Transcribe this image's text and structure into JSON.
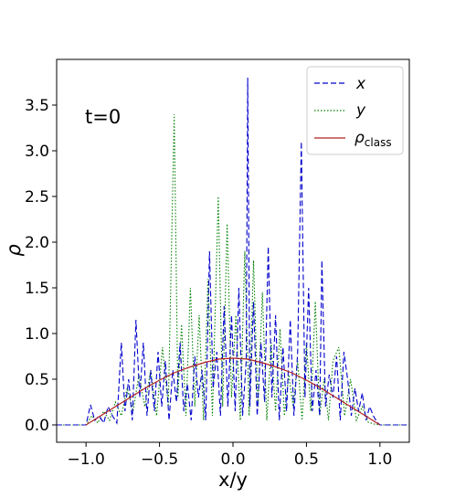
{
  "chart_data": {
    "type": "line",
    "xlabel": "x/y",
    "ylabel": "ρ",
    "annotation": "t=0",
    "xlim": [
      -1.2,
      1.2
    ],
    "ylim": [
      -0.19,
      4.0
    ],
    "xticks": [
      -1.0,
      -0.5,
      0.0,
      0.5,
      1.0
    ],
    "xtick_labels": [
      "−1.0",
      "−0.5",
      "0.0",
      "0.5",
      "1.0"
    ],
    "yticks": [
      0.0,
      0.5,
      1.0,
      1.5,
      2.0,
      2.5,
      3.0,
      3.5
    ],
    "ytick_labels": [
      "0.0",
      "0.5",
      "1.0",
      "1.5",
      "2.0",
      "2.5",
      "3.0",
      "3.5"
    ],
    "legend": {
      "position": "top-right",
      "entries": [
        {
          "label": "x",
          "series": 0
        },
        {
          "label": "y",
          "series": 1
        },
        {
          "label": "ρ",
          "sub": "class",
          "series": 2
        }
      ]
    },
    "series": [
      {
        "name": "x",
        "color": "#0000cc",
        "style": "dashed",
        "x": [
          -1.2,
          -1.0,
          -0.97,
          -0.94,
          -0.91,
          -0.88,
          -0.85,
          -0.82,
          -0.79,
          -0.76,
          -0.735,
          -0.71,
          -0.685,
          -0.66,
          -0.635,
          -0.61,
          -0.585,
          -0.56,
          -0.535,
          -0.51,
          -0.485,
          -0.46,
          -0.435,
          -0.41,
          -0.385,
          -0.36,
          -0.335,
          -0.31,
          -0.285,
          -0.26,
          -0.235,
          -0.21,
          -0.185,
          -0.16,
          -0.135,
          -0.11,
          -0.085,
          -0.06,
          -0.035,
          -0.01,
          0.015,
          0.04,
          0.065,
          0.09,
          0.1,
          0.115,
          0.14,
          0.165,
          0.19,
          0.215,
          0.24,
          0.265,
          0.29,
          0.315,
          0.34,
          0.365,
          0.39,
          0.415,
          0.44,
          0.465,
          0.49,
          0.515,
          0.54,
          0.565,
          0.59,
          0.605,
          0.63,
          0.655,
          0.68,
          0.705,
          0.73,
          0.755,
          0.78,
          0.805,
          0.83,
          0.855,
          0.88,
          0.905,
          0.93,
          0.955,
          0.98,
          1.0,
          1.2
        ],
        "y": [
          0.0,
          0.0,
          0.22,
          0.05,
          0.1,
          0.02,
          0.2,
          0.1,
          0.02,
          0.9,
          0.15,
          0.5,
          0.05,
          1.15,
          0.3,
          0.9,
          0.1,
          0.6,
          0.15,
          0.8,
          0.2,
          0.7,
          0.05,
          0.6,
          0.25,
          0.9,
          0.15,
          0.45,
          0.05,
          0.75,
          0.3,
          0.6,
          0.05,
          1.9,
          0.4,
          0.8,
          0.1,
          1.3,
          0.2,
          1.2,
          0.15,
          1.5,
          0.1,
          0.7,
          3.8,
          0.2,
          1.35,
          0.1,
          0.9,
          0.25,
          1.95,
          0.3,
          1.2,
          0.05,
          0.85,
          0.15,
          1.15,
          0.1,
          0.8,
          3.1,
          0.3,
          1.5,
          0.15,
          0.6,
          0.1,
          1.8,
          0.2,
          0.55,
          0.3,
          0.75,
          0.05,
          0.8,
          0.5,
          0.1,
          0.4,
          0.15,
          0.35,
          0.05,
          0.2,
          0.1,
          0.03,
          0.0,
          0.0
        ]
      },
      {
        "name": "y",
        "color": "#008000",
        "style": "dotted",
        "x": [
          -1.2,
          -1.0,
          -0.96,
          -0.92,
          -0.88,
          -0.84,
          -0.8,
          -0.76,
          -0.72,
          -0.68,
          -0.64,
          -0.6,
          -0.56,
          -0.52,
          -0.48,
          -0.44,
          -0.4,
          -0.375,
          -0.35,
          -0.32,
          -0.29,
          -0.26,
          -0.23,
          -0.2,
          -0.17,
          -0.14,
          -0.12,
          -0.1,
          -0.07,
          -0.04,
          -0.01,
          0.02,
          0.05,
          0.08,
          0.11,
          0.14,
          0.17,
          0.2,
          0.23,
          0.26,
          0.29,
          0.32,
          0.35,
          0.38,
          0.41,
          0.44,
          0.47,
          0.5,
          0.53,
          0.56,
          0.59,
          0.62,
          0.65,
          0.68,
          0.72,
          0.76,
          0.8,
          0.84,
          0.88,
          0.92,
          0.96,
          1.0,
          1.2
        ],
        "y": [
          0.0,
          0.0,
          0.1,
          0.02,
          0.15,
          0.05,
          0.25,
          0.1,
          0.4,
          0.15,
          0.55,
          0.2,
          0.6,
          0.1,
          0.85,
          0.2,
          3.4,
          0.3,
          1.1,
          0.1,
          1.5,
          0.2,
          1.2,
          0.05,
          1.6,
          0.1,
          1.3,
          2.5,
          0.2,
          2.2,
          0.3,
          1.2,
          0.05,
          1.9,
          0.1,
          1.8,
          0.2,
          1.45,
          0.05,
          0.9,
          0.15,
          1.05,
          0.1,
          0.55,
          0.2,
          0.7,
          0.05,
          0.9,
          0.15,
          1.35,
          0.1,
          0.5,
          0.05,
          0.7,
          0.85,
          0.1,
          0.5,
          0.05,
          0.2,
          0.03,
          0.01,
          0.0,
          0.0
        ]
      },
      {
        "name": "ρclass",
        "color": "#b22222",
        "style": "solid",
        "x": [
          -1.0,
          -0.9,
          -0.8,
          -0.7,
          -0.6,
          -0.5,
          -0.4,
          -0.3,
          -0.2,
          -0.1,
          0.0,
          0.1,
          0.2,
          0.3,
          0.4,
          0.5,
          0.6,
          0.7,
          0.8,
          0.9,
          1.0
        ],
        "y": [
          0.0,
          0.1,
          0.2,
          0.3,
          0.4,
          0.49,
          0.57,
          0.63,
          0.68,
          0.72,
          0.73,
          0.72,
          0.68,
          0.63,
          0.57,
          0.49,
          0.4,
          0.3,
          0.2,
          0.1,
          0.0
        ]
      }
    ]
  }
}
